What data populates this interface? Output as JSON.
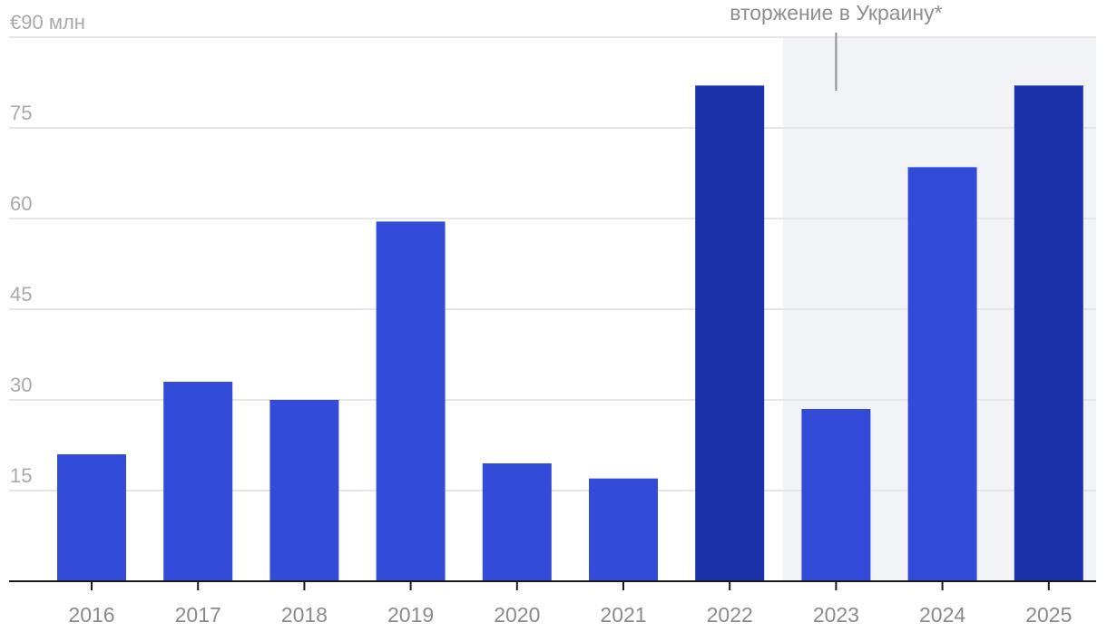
{
  "chart_data": {
    "type": "bar",
    "categories": [
      "2016",
      "2017",
      "2018",
      "2019",
      "2020",
      "2021",
      "2022",
      "2023",
      "2024",
      "2025"
    ],
    "values": [
      21,
      33,
      30,
      59.5,
      19.5,
      17,
      82,
      28.5,
      68.5,
      82
    ],
    "highlighted_categories": [
      "2022",
      "2025"
    ],
    "y_unit_label": "€90 млн",
    "y_ticks": [
      {
        "value": 90,
        "label": "€90 млн"
      },
      {
        "value": 75,
        "label": "75"
      },
      {
        "value": 60,
        "label": "60"
      },
      {
        "value": 45,
        "label": "45"
      },
      {
        "value": 30,
        "label": "30"
      },
      {
        "value": 15,
        "label": "15"
      }
    ],
    "ylim": [
      0,
      90
    ],
    "grid": true,
    "title": "",
    "xlabel": "",
    "ylabel": "",
    "shaded_region": {
      "from": "2023",
      "to": "2025"
    },
    "annotation": {
      "text": "вторжение в Украину*",
      "at_category": "2023"
    },
    "colors": {
      "bar": "#334bd9",
      "bar_highlight": "#1b31a9",
      "shade": "#f2f3f6",
      "grid": "#e6e6e6",
      "axis": "#1a1a1a",
      "annotation_line": "#8e8e93"
    }
  }
}
